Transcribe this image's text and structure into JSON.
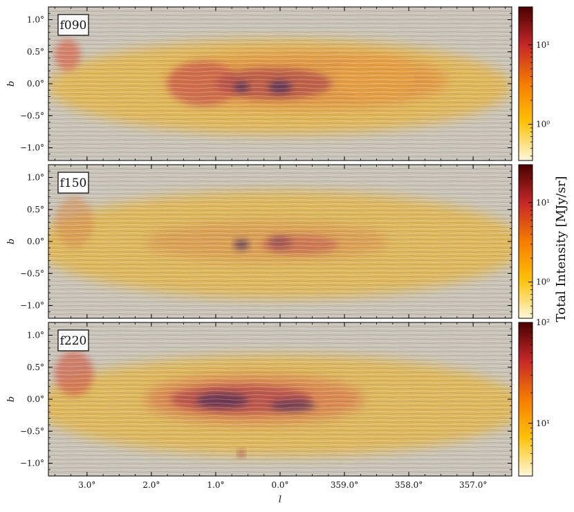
{
  "chart_data": {
    "type": "heatmap",
    "x_label": "l",
    "y_label": "b",
    "x_ticks": [
      3.0,
      2.0,
      1.0,
      0.0,
      359.0,
      358.0,
      357.0
    ],
    "x_tick_labels": [
      "3.0°",
      "2.0°",
      "1.0°",
      "0.0°",
      "359.0°",
      "358.0°",
      "357.0°"
    ],
    "y_ticks": [
      1.0,
      0.5,
      0.0,
      -0.5,
      -1.0
    ],
    "y_tick_labels": [
      "1.0°",
      "0.5°",
      "0.0°",
      "−0.5°",
      "−1.0°"
    ],
    "y_range": [
      -1.2,
      1.2
    ],
    "x_range_offset_deg": [
      3.6,
      -3.6
    ],
    "colorbar_label": "Total Intensity  [MJy/sr]",
    "colorbar_scale": "log",
    "colormap": [
      "#fff7dc",
      "#ffc107",
      "#f57c00",
      "#c62828",
      "#4a0000"
    ],
    "background_gray": "#c8c3b8",
    "panels": [
      {
        "band": "f090",
        "colorbar_ticks": [
          {
            "value": 10,
            "label": "10¹"
          },
          {
            "value": 1,
            "label": "10⁰"
          }
        ],
        "colorbar_range": [
          0.35,
          30
        ]
      },
      {
        "band": "f150",
        "colorbar_ticks": [
          {
            "value": 10,
            "label": "10¹"
          },
          {
            "value": 1,
            "label": "10⁰"
          }
        ],
        "colorbar_range": [
          0.35,
          30
        ]
      },
      {
        "band": "f220",
        "colorbar_ticks": [
          {
            "value": 100,
            "label": "10²"
          },
          {
            "value": 10,
            "label": "10¹"
          }
        ],
        "colorbar_range": [
          3,
          100
        ]
      }
    ]
  }
}
